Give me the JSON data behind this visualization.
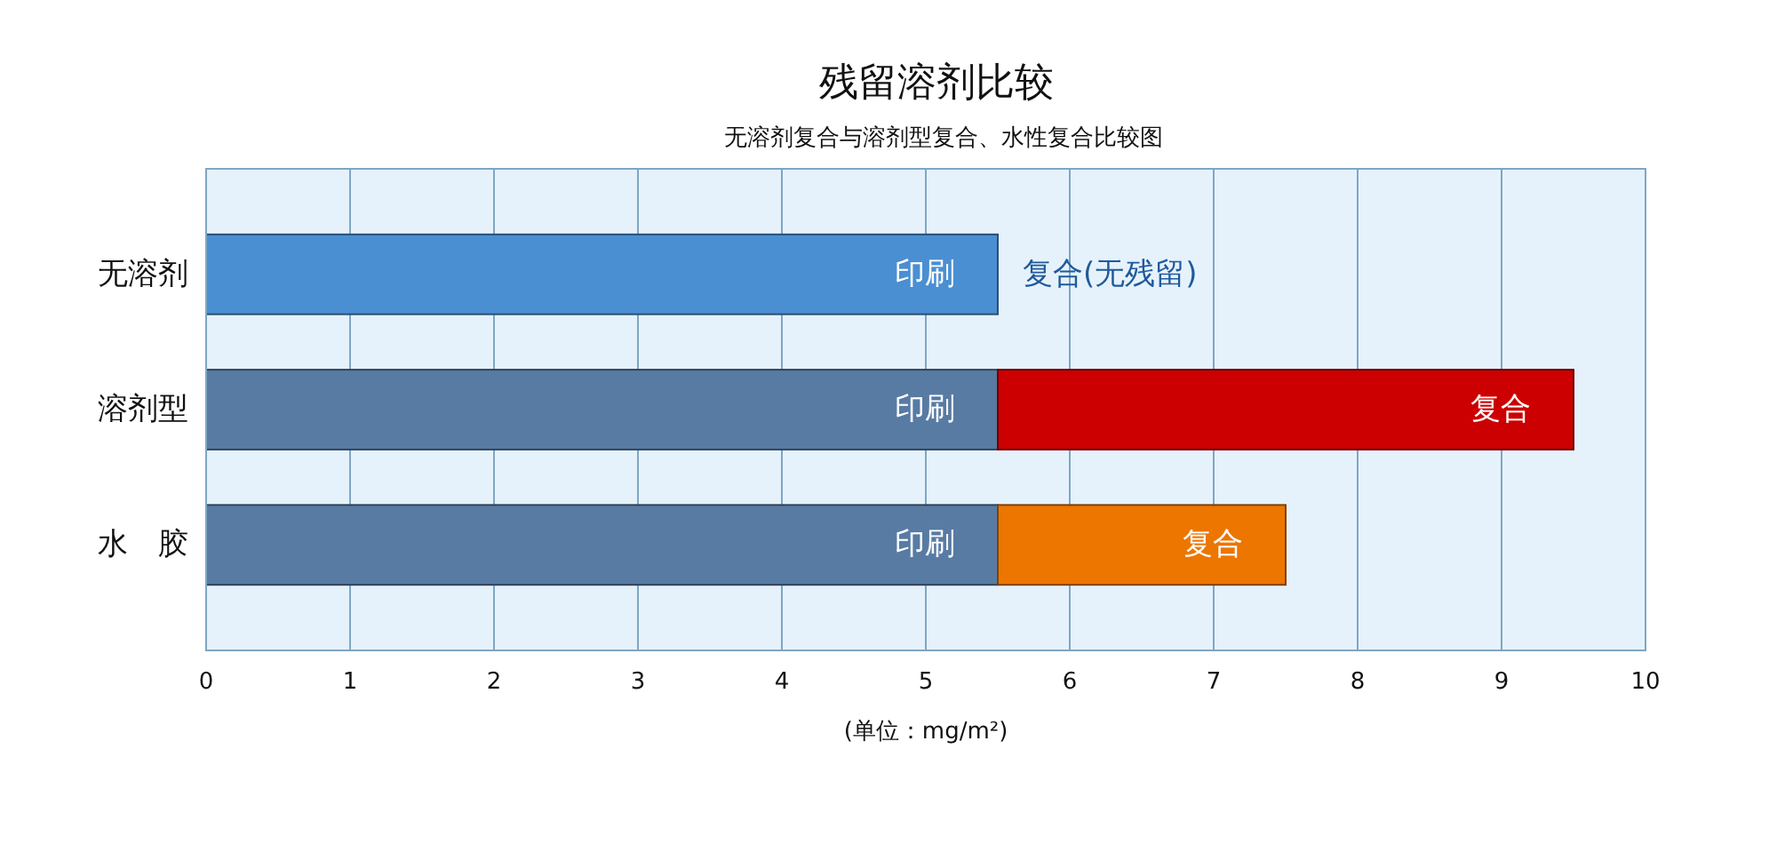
{
  "chart_data": {
    "type": "bar",
    "orientation": "horizontal",
    "stacked": true,
    "title": "残留溶剂比较",
    "subtitle": "无溶剂复合与溶剂型复合、水性复合比较图",
    "xlabel": "(单位：mg/m²)",
    "categories": [
      "无溶剂",
      "溶剂型",
      "水　胶"
    ],
    "series": [
      {
        "name": "印刷",
        "colors": [
          "#4a8fd2",
          "#587ba3",
          "#587ba3"
        ],
        "values": [
          5.5,
          5.5,
          5.5
        ]
      },
      {
        "name": "复合",
        "colors": [
          null,
          "#cc0000",
          "#ec7600"
        ],
        "values": [
          null,
          4,
          2
        ]
      }
    ],
    "xlim": [
      0,
      10
    ],
    "xticks": [
      0,
      1,
      2,
      3,
      4,
      5,
      6,
      7,
      8,
      9,
      10
    ],
    "grid": "x",
    "annotations": [
      {
        "text": "复合(无残留)",
        "x": 5.5,
        "y": "无溶剂"
      }
    ]
  }
}
